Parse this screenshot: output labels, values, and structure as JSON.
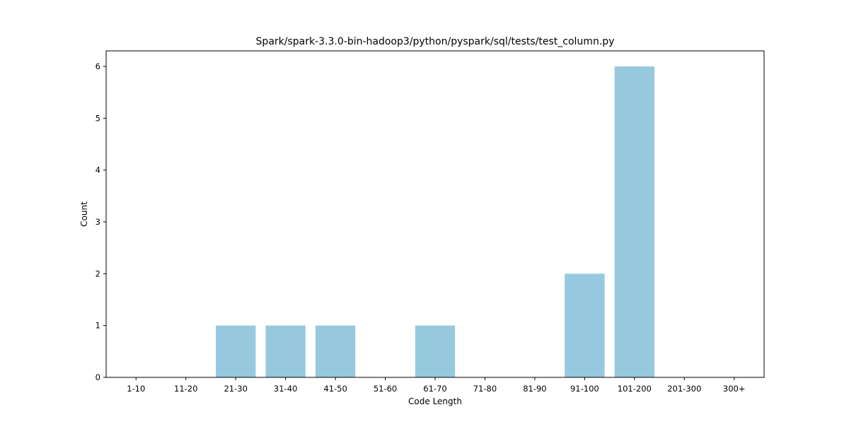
{
  "chart_data": {
    "type": "bar",
    "title": "Spark/spark-3.3.0-bin-hadoop3/python/pyspark/sql/tests/test_column.py",
    "xlabel": "Code Length",
    "ylabel": "Count",
    "categories": [
      "1-10",
      "11-20",
      "21-30",
      "31-40",
      "41-50",
      "51-60",
      "61-70",
      "71-80",
      "81-90",
      "91-100",
      "101-200",
      "201-300",
      "300+"
    ],
    "values": [
      0,
      0,
      1,
      1,
      1,
      0,
      1,
      0,
      0,
      2,
      6,
      0,
      0
    ],
    "ylim": [
      0,
      6.3
    ],
    "yticks": [
      0,
      1,
      2,
      3,
      4,
      5,
      6
    ],
    "grid": false,
    "bar_color": "#96c9dd"
  }
}
